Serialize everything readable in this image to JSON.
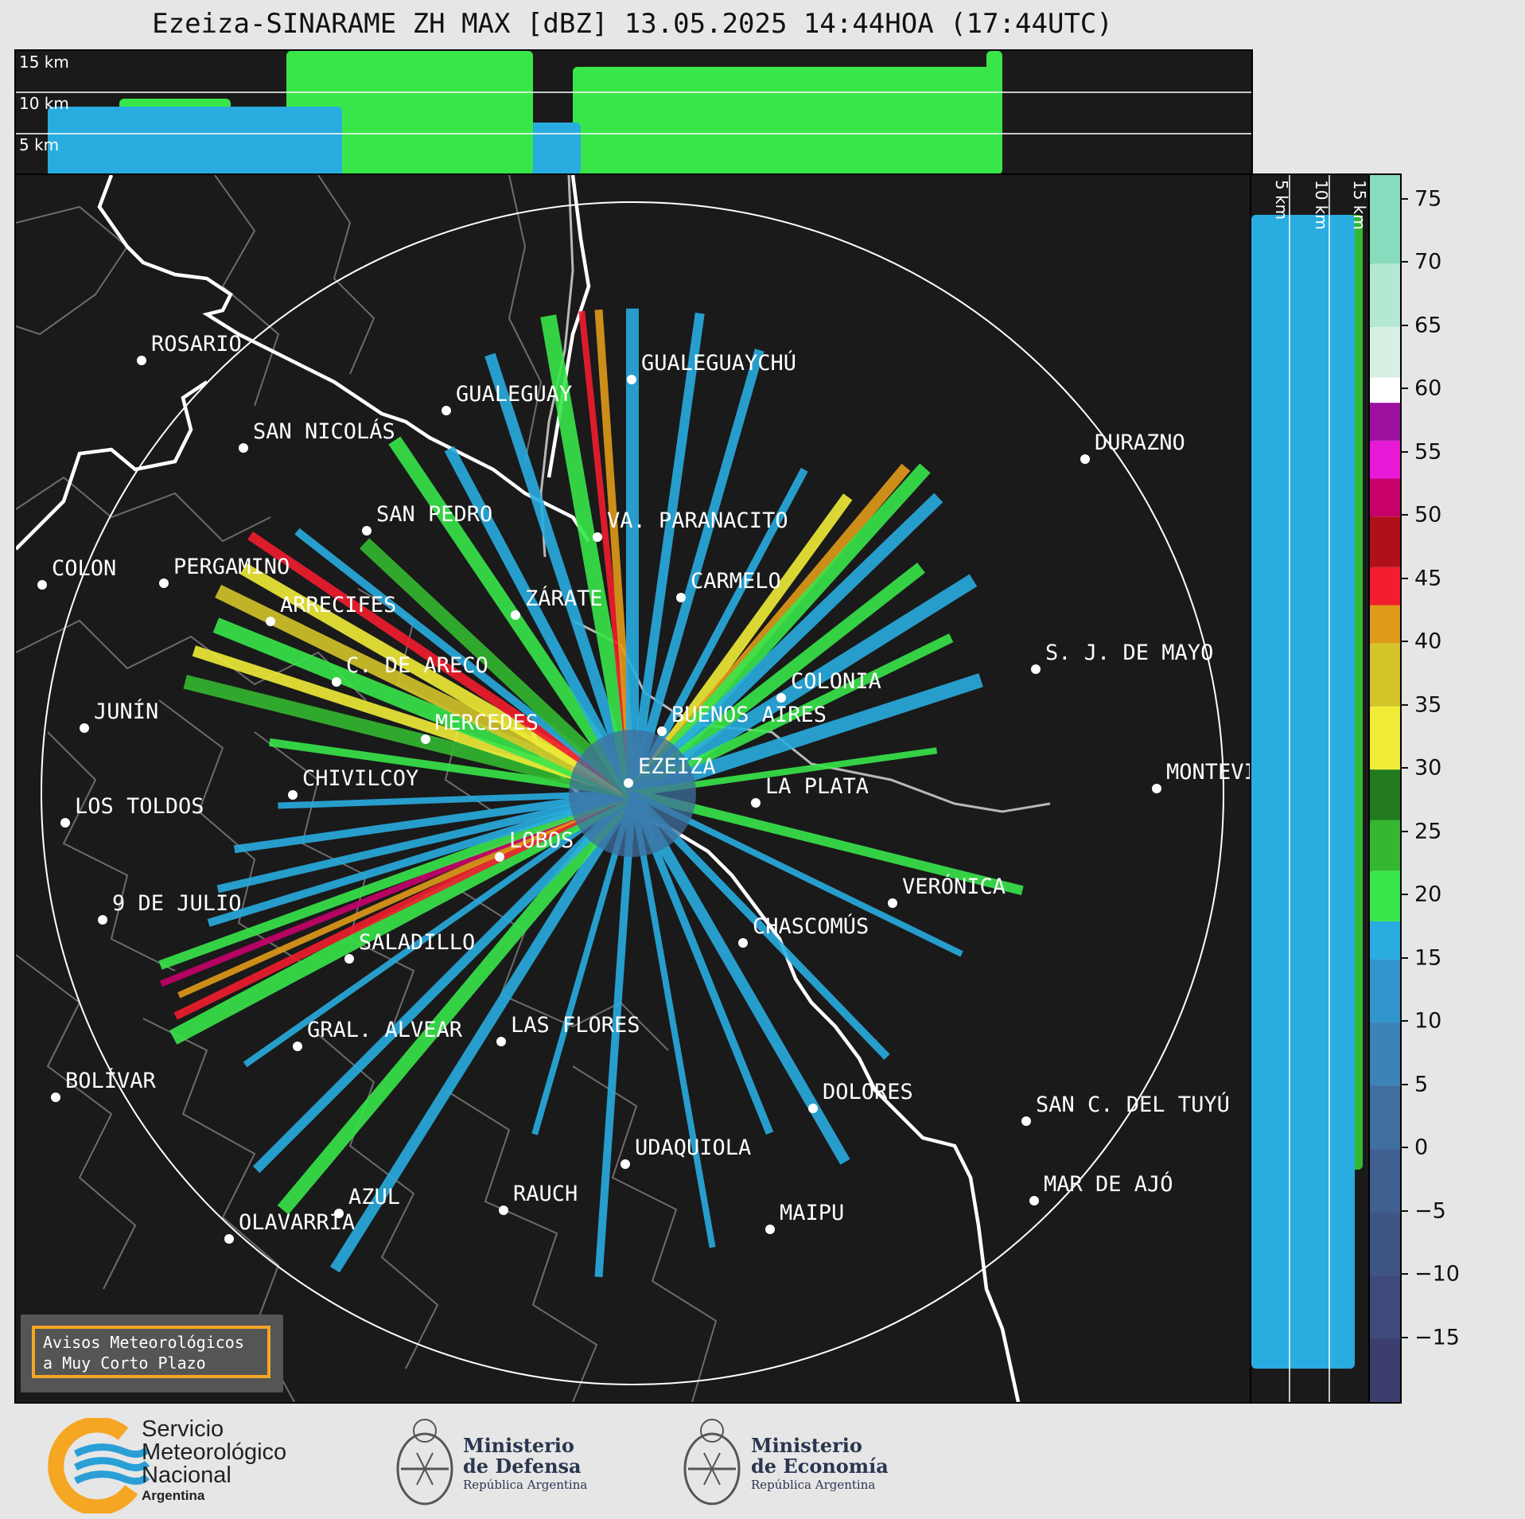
{
  "title": "Ezeiza-SINARAME ZH MAX [dBZ] 13.05.2025 14:44HOA (17:44UTC)",
  "top_panel": {
    "km_labels": [
      "15 km",
      "10 km",
      "5 km"
    ]
  },
  "side_panel": {
    "km_labels": [
      "5 km",
      "10 km",
      "15 km"
    ]
  },
  "colorbar": {
    "ticks": [
      "75",
      "70",
      "65",
      "60",
      "55",
      "50",
      "45",
      "40",
      "35",
      "30",
      "25",
      "20",
      "15",
      "10",
      "5",
      "0",
      "−5",
      "−10",
      "−15"
    ],
    "range": [
      -20,
      77
    ],
    "bands": [
      {
        "from": -20,
        "to": -15,
        "color": "#3c3f6e"
      },
      {
        "from": -15,
        "to": -10,
        "color": "#3d4a7a"
      },
      {
        "from": -10,
        "to": -5,
        "color": "#3e5585"
      },
      {
        "from": -5,
        "to": 0,
        "color": "#3f6090"
      },
      {
        "from": 0,
        "to": 5,
        "color": "#3f6f9e"
      },
      {
        "from": 5,
        "to": 10,
        "color": "#3b83b8"
      },
      {
        "from": 10,
        "to": 15,
        "color": "#2f95cc"
      },
      {
        "from": 15,
        "to": 18,
        "color": "#29ace0"
      },
      {
        "from": 18,
        "to": 22,
        "color": "#39e64a"
      },
      {
        "from": 22,
        "to": 26,
        "color": "#33b830"
      },
      {
        "from": 26,
        "to": 30,
        "color": "#217a1e"
      },
      {
        "from": 30,
        "to": 35,
        "color": "#f0ec38"
      },
      {
        "from": 35,
        "to": 40,
        "color": "#d4c42a"
      },
      {
        "from": 40,
        "to": 43,
        "color": "#e09a1a"
      },
      {
        "from": 43,
        "to": 46,
        "color": "#f21d2e"
      },
      {
        "from": 46,
        "to": 50,
        "color": "#b0101a"
      },
      {
        "from": 50,
        "to": 53,
        "color": "#c8006a"
      },
      {
        "from": 53,
        "to": 56,
        "color": "#e61ad6"
      },
      {
        "from": 56,
        "to": 59,
        "color": "#9d109e"
      },
      {
        "from": 59,
        "to": 61,
        "color": "#ffffff"
      },
      {
        "from": 61,
        "to": 65,
        "color": "#d8f0e4"
      },
      {
        "from": 65,
        "to": 70,
        "color": "#b4e8d2"
      },
      {
        "from": 70,
        "to": 77,
        "color": "#86dcbc"
      }
    ]
  },
  "map": {
    "cities": [
      {
        "name": "ROSARIO"
      },
      {
        "name": "GUALEGUAYCHÚ"
      },
      {
        "name": "GUALEGUAY"
      },
      {
        "name": "SAN NICOLÁS"
      },
      {
        "name": "DURAZNO"
      },
      {
        "name": "SAN PEDRO"
      },
      {
        "name": "VA. PARANACITO"
      },
      {
        "name": "COLON"
      },
      {
        "name": "PERGAMINO"
      },
      {
        "name": "CARMELO"
      },
      {
        "name": "ARRECIFES"
      },
      {
        "name": "ZÁRATE"
      },
      {
        "name": "C. DE ARECO"
      },
      {
        "name": "S. J. DE MAYO"
      },
      {
        "name": "COLONIA"
      },
      {
        "name": "JUNÍN"
      },
      {
        "name": "MERCEDES"
      },
      {
        "name": "BUENOS AIRES"
      },
      {
        "name": "EZEIZA"
      },
      {
        "name": "CHIVILCOY"
      },
      {
        "name": "LA PLATA"
      },
      {
        "name": "MONTEVIDEO"
      },
      {
        "name": "LOS TOLDOS"
      },
      {
        "name": "LOBOS"
      },
      {
        "name": "VERÓNICA"
      },
      {
        "name": "9 DE JULIO"
      },
      {
        "name": "CHASCOMÚS"
      },
      {
        "name": "SALADILLO"
      },
      {
        "name": "GRAL. ALVEAR"
      },
      {
        "name": "LAS FLORES"
      },
      {
        "name": "BOLÍVAR"
      },
      {
        "name": "DOLORES"
      },
      {
        "name": "SAN C. DEL TUYÚ"
      },
      {
        "name": "UDAQUIOLA"
      },
      {
        "name": "MAR DE AJÓ"
      },
      {
        "name": "AZUL"
      },
      {
        "name": "RAUCH"
      },
      {
        "name": "OLAVARRÍA"
      },
      {
        "name": "MAIPU"
      }
    ]
  },
  "notice": {
    "line1": "Avisos Meteorológicos",
    "line2": "a Muy Corto Plazo"
  },
  "footer": {
    "smn_line1": "Servicio",
    "smn_line2": "Meteorológico",
    "smn_line3": "Nacional",
    "smn_country": "Argentina",
    "defensa_line1": "Ministerio",
    "defensa_line2": "de Defensa",
    "defensa_sub": "República Argentina",
    "economia_line1": "Ministerio",
    "economia_line2": "de Economía",
    "economia_sub": "República Argentina"
  },
  "colors": {
    "background": "#e6e6e6",
    "panel": "#1a1a1a",
    "coast": "#ffffff",
    "notice_border": "#f5a623",
    "smn_blue": "#2a9fd6",
    "smn_orange": "#f5a623"
  }
}
